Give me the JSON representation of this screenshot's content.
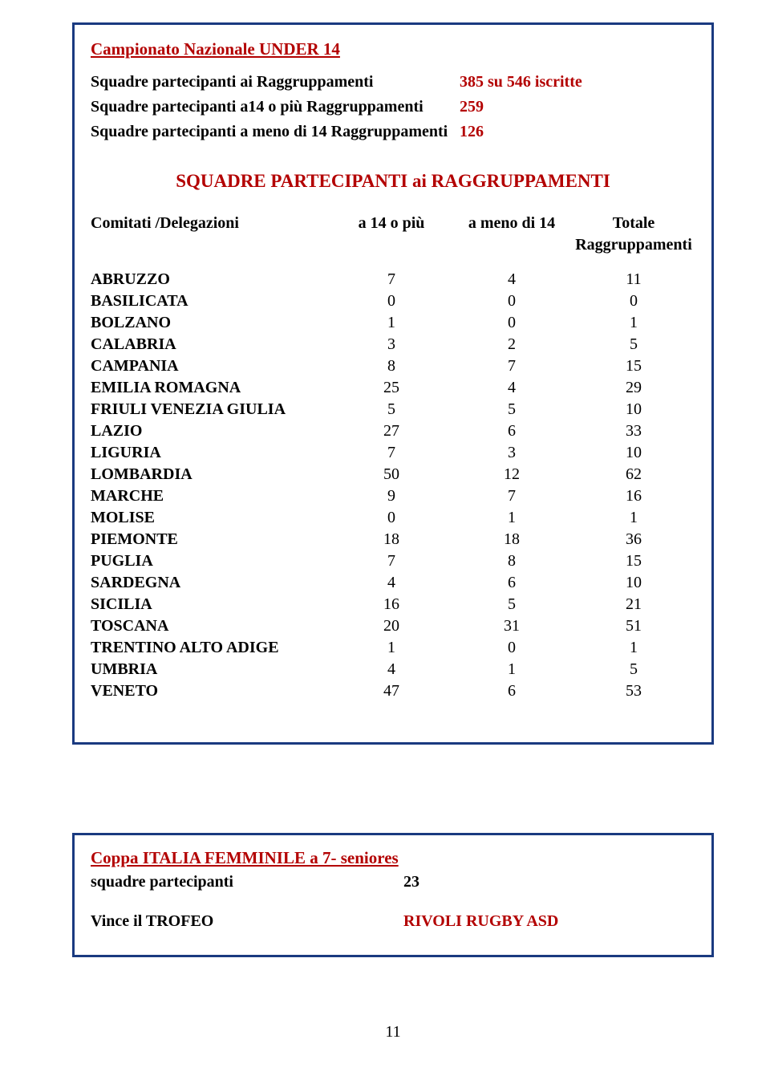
{
  "colors": {
    "border": "#1a3a80",
    "accent_red": "#b30000",
    "text": "#000000",
    "bg": "#ffffff"
  },
  "u14": {
    "title": "Campionato Nazionale UNDER 14",
    "stats": [
      {
        "label": "Squadre partecipanti ai Raggruppamenti",
        "value": "385 su 546 iscritte"
      },
      {
        "label": "Squadre partecipanti a14 o più Raggruppamenti",
        "value": "259"
      },
      {
        "label": "Squadre partecipanti a meno di 14 Raggruppamenti",
        "value": "126"
      }
    ],
    "subtitle": "SQUADRE PARTECIPANTI ai RAGGRUPPAMENTI",
    "headers": {
      "c0": "Comitati /Delegazioni",
      "c1": "a 14 o più",
      "c2": "a meno di 14",
      "c3": "Totale Raggruppamenti"
    },
    "rows": [
      {
        "name": "ABRUZZO",
        "a": "7",
        "b": "4",
        "tot": "11"
      },
      {
        "name": "BASILICATA",
        "a": "0",
        "b": "0",
        "tot": "0"
      },
      {
        "name": "BOLZANO",
        "a": "1",
        "b": "0",
        "tot": "1"
      },
      {
        "name": "CALABRIA",
        "a": "3",
        "b": "2",
        "tot": "5"
      },
      {
        "name": "CAMPANIA",
        "a": "8",
        "b": "7",
        "tot": "15"
      },
      {
        "name": "EMILIA ROMAGNA",
        "a": "25",
        "b": "4",
        "tot": "29"
      },
      {
        "name": "FRIULI VENEZIA GIULIA",
        "a": "5",
        "b": "5",
        "tot": "10"
      },
      {
        "name": "LAZIO",
        "a": "27",
        "b": "6",
        "tot": "33"
      },
      {
        "name": "LIGURIA",
        "a": "7",
        "b": "3",
        "tot": "10"
      },
      {
        "name": "LOMBARDIA",
        "a": "50",
        "b": "12",
        "tot": "62"
      },
      {
        "name": "MARCHE",
        "a": "9",
        "b": "7",
        "tot": "16"
      },
      {
        "name": "MOLISE",
        "a": "0",
        "b": "1",
        "tot": "1"
      },
      {
        "name": "PIEMONTE",
        "a": "18",
        "b": "18",
        "tot": "36"
      },
      {
        "name": "PUGLIA",
        "a": "7",
        "b": "8",
        "tot": "15"
      },
      {
        "name": "SARDEGNA",
        "a": "4",
        "b": "6",
        "tot": "10"
      },
      {
        "name": "SICILIA",
        "a": "16",
        "b": "5",
        "tot": "21"
      },
      {
        "name": "TOSCANA",
        "a": "20",
        "b": "31",
        "tot": "51"
      },
      {
        "name": "TRENTINO ALTO ADIGE",
        "a": "1",
        "b": "0",
        "tot": "1"
      },
      {
        "name": "UMBRIA",
        "a": "4",
        "b": "1",
        "tot": "5"
      },
      {
        "name": "VENETO",
        "a": "47",
        "b": "6",
        "tot": "53"
      }
    ]
  },
  "coppa": {
    "title": "Coppa ITALIA FEMMINILE a 7- seniores",
    "row1_label": "squadre partecipanti",
    "row1_value": "23",
    "row2_label": "Vince il TROFEO",
    "row2_value": "RIVOLI RUGBY ASD"
  },
  "page_number": "11"
}
